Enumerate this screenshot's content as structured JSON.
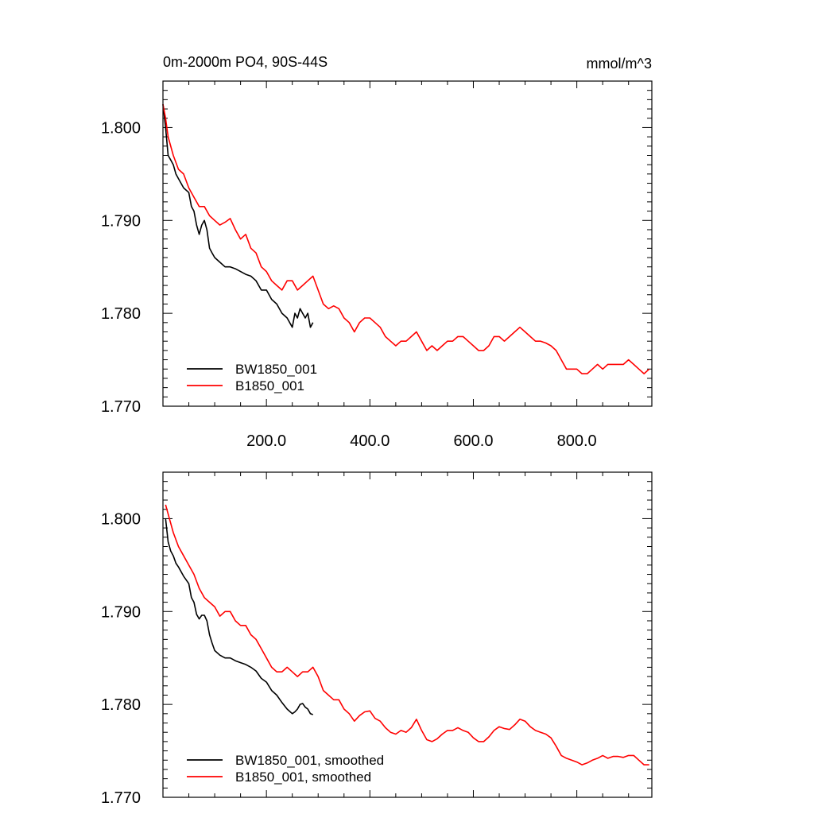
{
  "chart_data": [
    {
      "type": "line",
      "title": "0m-2000m PO4, 90S-44S",
      "units": "mmol/m^3",
      "xlim": [
        0,
        945
      ],
      "ylim": [
        1.77,
        1.805
      ],
      "xticks": [
        200,
        400,
        600,
        800
      ],
      "xtick_labels": [
        "200.0",
        "400.0",
        "600.0",
        "800.0"
      ],
      "yticks": [
        1.77,
        1.78,
        1.79,
        1.8
      ],
      "ytick_labels": [
        "1.770",
        "1.780",
        "1.790",
        "1.800"
      ],
      "legend_position": "bottom-left",
      "grid": false,
      "series": [
        {
          "name": "BW1850_001",
          "color": "#000000",
          "x": [
            0,
            5,
            10,
            15,
            20,
            25,
            30,
            40,
            50,
            55,
            60,
            65,
            70,
            75,
            80,
            85,
            90,
            95,
            100,
            110,
            120,
            130,
            140,
            150,
            160,
            170,
            180,
            190,
            200,
            210,
            220,
            230,
            240,
            250,
            255,
            260,
            265,
            270,
            275,
            280,
            285,
            290
          ],
          "values": [
            1.8025,
            1.8,
            1.797,
            1.7965,
            1.796,
            1.795,
            1.7945,
            1.7935,
            1.793,
            1.7915,
            1.791,
            1.7895,
            1.7885,
            1.7895,
            1.79,
            1.789,
            1.787,
            1.7865,
            1.786,
            1.7855,
            1.785,
            1.785,
            1.7848,
            1.7845,
            1.7842,
            1.784,
            1.7835,
            1.7825,
            1.7825,
            1.7815,
            1.781,
            1.78,
            1.7795,
            1.7785,
            1.78,
            1.7795,
            1.7805,
            1.78,
            1.7795,
            1.78,
            1.7785,
            1.779
          ]
        },
        {
          "name": "B1850_001",
          "color": "#ff0000",
          "x": [
            0,
            5,
            10,
            20,
            30,
            40,
            50,
            60,
            70,
            80,
            90,
            100,
            110,
            120,
            130,
            140,
            150,
            160,
            170,
            180,
            190,
            200,
            210,
            220,
            230,
            240,
            250,
            260,
            270,
            280,
            290,
            300,
            310,
            320,
            330,
            340,
            350,
            360,
            370,
            380,
            390,
            400,
            410,
            420,
            430,
            440,
            450,
            460,
            470,
            480,
            490,
            500,
            510,
            520,
            530,
            540,
            550,
            560,
            570,
            580,
            590,
            600,
            610,
            620,
            630,
            640,
            650,
            660,
            670,
            680,
            690,
            700,
            710,
            720,
            730,
            740,
            750,
            760,
            770,
            780,
            790,
            800,
            810,
            820,
            830,
            840,
            850,
            860,
            870,
            880,
            890,
            900,
            910,
            920,
            930,
            940
          ],
          "values": [
            1.8025,
            1.801,
            1.799,
            1.797,
            1.7955,
            1.795,
            1.7935,
            1.7925,
            1.7915,
            1.7915,
            1.7905,
            1.79,
            1.7895,
            1.7898,
            1.7902,
            1.789,
            1.788,
            1.7885,
            1.787,
            1.7865,
            1.785,
            1.7845,
            1.7835,
            1.783,
            1.7825,
            1.7835,
            1.7835,
            1.7825,
            1.783,
            1.7835,
            1.784,
            1.7825,
            1.781,
            1.7805,
            1.7808,
            1.7805,
            1.7795,
            1.779,
            1.778,
            1.779,
            1.7795,
            1.7795,
            1.779,
            1.7785,
            1.7775,
            1.777,
            1.7765,
            1.777,
            1.777,
            1.7775,
            1.778,
            1.777,
            1.776,
            1.7765,
            1.776,
            1.7765,
            1.777,
            1.777,
            1.7775,
            1.7775,
            1.777,
            1.7765,
            1.776,
            1.776,
            1.7765,
            1.7775,
            1.7775,
            1.777,
            1.7775,
            1.778,
            1.7785,
            1.778,
            1.7775,
            1.777,
            1.777,
            1.7768,
            1.7765,
            1.776,
            1.775,
            1.774,
            1.774,
            1.774,
            1.7735,
            1.7735,
            1.774,
            1.7745,
            1.774,
            1.7745,
            1.7745,
            1.7745,
            1.7745,
            1.775,
            1.7745,
            1.774,
            1.7735,
            1.774
          ]
        }
      ]
    },
    {
      "type": "line",
      "xlim": [
        0,
        945
      ],
      "ylim": [
        1.77,
        1.805
      ],
      "xticks": [
        200,
        400,
        600,
        800
      ],
      "yticks": [
        1.77,
        1.78,
        1.79,
        1.8
      ],
      "ytick_labels": [
        "1.770",
        "1.780",
        "1.790",
        "1.800"
      ],
      "legend_position": "bottom-left",
      "grid": false,
      "series": [
        {
          "name": "BW1850_001, smoothed",
          "color": "#000000",
          "x": [
            5,
            10,
            15,
            20,
            25,
            30,
            40,
            50,
            55,
            60,
            65,
            70,
            75,
            80,
            85,
            90,
            95,
            100,
            110,
            120,
            130,
            140,
            150,
            160,
            170,
            180,
            190,
            200,
            210,
            220,
            230,
            240,
            250,
            255,
            260,
            265,
            270,
            275,
            280,
            285,
            290
          ],
          "values": [
            1.8,
            1.7975,
            1.7965,
            1.796,
            1.7952,
            1.7948,
            1.7938,
            1.793,
            1.7915,
            1.791,
            1.7897,
            1.7892,
            1.7896,
            1.7896,
            1.789,
            1.7875,
            1.7866,
            1.7858,
            1.7853,
            1.785,
            1.785,
            1.7847,
            1.7845,
            1.7843,
            1.784,
            1.7836,
            1.7828,
            1.7824,
            1.7815,
            1.781,
            1.7802,
            1.7795,
            1.779,
            1.7792,
            1.7795,
            1.78,
            1.7801,
            1.7797,
            1.7795,
            1.779,
            1.7789
          ]
        },
        {
          "name": "B1850_001, smoothed",
          "color": "#ff0000",
          "x": [
            5,
            10,
            20,
            30,
            40,
            50,
            60,
            70,
            80,
            90,
            100,
            110,
            120,
            130,
            140,
            150,
            160,
            170,
            180,
            190,
            200,
            210,
            220,
            230,
            240,
            250,
            260,
            270,
            280,
            290,
            300,
            310,
            320,
            330,
            340,
            350,
            360,
            370,
            380,
            390,
            400,
            410,
            420,
            430,
            440,
            450,
            460,
            470,
            480,
            490,
            500,
            510,
            520,
            530,
            540,
            550,
            560,
            570,
            580,
            590,
            600,
            610,
            620,
            630,
            640,
            650,
            660,
            670,
            680,
            690,
            700,
            710,
            720,
            730,
            740,
            750,
            760,
            770,
            780,
            790,
            800,
            810,
            820,
            830,
            840,
            850,
            860,
            870,
            880,
            890,
            900,
            910,
            920,
            930,
            940
          ],
          "values": [
            1.8015,
            1.8005,
            1.7985,
            1.797,
            1.796,
            1.795,
            1.794,
            1.7925,
            1.7915,
            1.791,
            1.7905,
            1.7895,
            1.79,
            1.79,
            1.789,
            1.7885,
            1.7885,
            1.7875,
            1.787,
            1.786,
            1.785,
            1.784,
            1.7835,
            1.7835,
            1.784,
            1.7835,
            1.783,
            1.7835,
            1.7835,
            1.784,
            1.783,
            1.7815,
            1.781,
            1.7805,
            1.7805,
            1.7795,
            1.779,
            1.7782,
            1.7788,
            1.7792,
            1.7793,
            1.7785,
            1.7782,
            1.7775,
            1.777,
            1.7768,
            1.7772,
            1.777,
            1.7775,
            1.7784,
            1.7772,
            1.7762,
            1.776,
            1.7763,
            1.7768,
            1.7772,
            1.7772,
            1.7775,
            1.7772,
            1.777,
            1.7764,
            1.776,
            1.776,
            1.7765,
            1.7772,
            1.7776,
            1.7774,
            1.7773,
            1.7778,
            1.7784,
            1.7782,
            1.7776,
            1.7772,
            1.777,
            1.7768,
            1.7764,
            1.7755,
            1.7745,
            1.7742,
            1.774,
            1.7738,
            1.7735,
            1.7737,
            1.774,
            1.7742,
            1.7745,
            1.7742,
            1.7744,
            1.7744,
            1.7743,
            1.7745,
            1.7745,
            1.774,
            1.7735,
            1.7735
          ]
        }
      ]
    }
  ]
}
